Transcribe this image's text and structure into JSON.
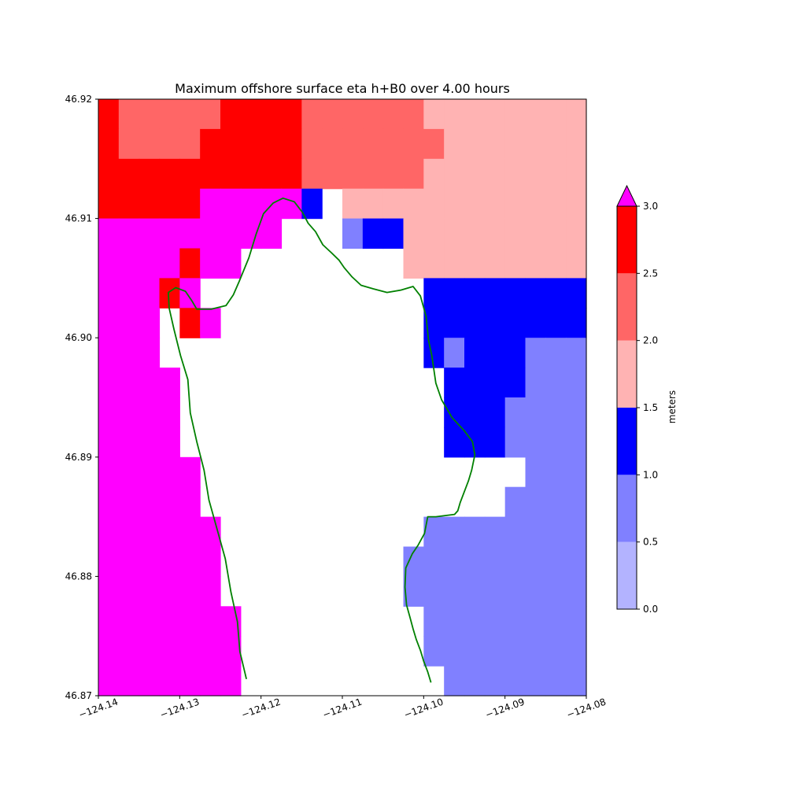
{
  "chart_data": {
    "type": "heatmap",
    "title": "Maximum offshore surface eta h+B0 over 4.00 hours",
    "xlabel": "",
    "ylabel": "",
    "xlim": [
      -124.14,
      -124.08
    ],
    "ylim": [
      46.87,
      46.92
    ],
    "x_ticks": [
      -124.14,
      -124.13,
      -124.12,
      -124.11,
      -124.1,
      -124.09,
      -124.08
    ],
    "x_tick_labels": [
      "−124.14",
      "−124.13",
      "−124.12",
      "−124.11",
      "−124.10",
      "−124.09",
      "−124.08"
    ],
    "y_ticks": [
      46.87,
      46.88,
      46.89,
      46.9,
      46.91,
      46.92
    ],
    "y_tick_labels": [
      "46.87",
      "46.88",
      "46.89",
      "46.90",
      "46.91",
      "46.92"
    ],
    "grid": false,
    "colorbar": {
      "label": "meters",
      "levels": [
        0.0,
        0.5,
        1.0,
        1.5,
        2.0,
        2.5,
        3.0
      ],
      "tick_labels": [
        "0.0",
        "0.5",
        "1.0",
        "1.5",
        "2.0",
        "2.5",
        "3.0"
      ],
      "colors": [
        "#b3b3ff",
        "#8080ff",
        "#0000ff",
        "#ffb3b3",
        "#ff6666",
        "#ff0000"
      ],
      "over_color": "#ff00ff",
      "extend": "max"
    },
    "grid_spec": {
      "x0": -124.14,
      "y_top": 46.92,
      "dx": 0.0025,
      "dy": 0.0025,
      "ncols": 24,
      "nrows": 20
    },
    "level_codes": {
      "R": "#ff0000",
      "S": "#ff6666",
      "P": "#ffb3b3",
      "B": "#0000ff",
      "L": "#8080ff",
      "M": "#ff00ff",
      ".": "none"
    },
    "cells": [
      "RSSSSSRRRRSSSSSSPPPPPPPP",
      "RSSSSRRRRRSSSSSSSPPPPPPP",
      "RRRRRRRRRRSSSSSSPPPPPPPP",
      "RRRRRMMMMMB.PPPPPPPPPPPP",
      "MMMMMMMMM...LBBPPPPPPPPP",
      "MMMMRMM........PPPPPPPPP",
      "MMMRM...........BBBBBBBB",
      "MMM.RM..........BBBBBBBB",
      "MMM.............BLBBBLLL",
      "MMMM.............BBBBLLL",
      "MMMM.............BBBLLLL",
      "MMMM.............BBBLLLL",
      "MMMMM................LLL",
      "MMMMM...............LLLL",
      "MMMMMM..........LLLLLLLL",
      "MMMMMM.........LLLLLLLLL",
      "MMMMMM.........LLLLLLLLL",
      "MMMMMMM.........LLLLLLLL",
      "MMMMMMM.........LLLLLLLL",
      "MMMMMMM..........LLLLLLL"
    ],
    "coastlines": [
      [
        [
          -124.1218,
          46.8714
        ],
        [
          -124.1226,
          46.8737
        ],
        [
          -124.1229,
          46.8762
        ],
        [
          -124.1237,
          46.8787
        ],
        [
          -124.1244,
          46.8815
        ],
        [
          -124.1253,
          46.8837
        ],
        [
          -124.1264,
          46.8864
        ],
        [
          -124.127,
          46.8889
        ],
        [
          -124.1279,
          46.8913
        ],
        [
          -124.1287,
          46.8937
        ],
        [
          -124.129,
          46.8965
        ],
        [
          -124.1299,
          46.8985
        ],
        [
          -124.1307,
          46.9007
        ],
        [
          -124.1313,
          46.9025
        ],
        [
          -124.1314,
          46.9038
        ],
        [
          -124.1305,
          46.9042
        ],
        [
          -124.1293,
          46.9039
        ],
        [
          -124.1285,
          46.9031
        ],
        [
          -124.1279,
          46.9024
        ],
        [
          -124.1261,
          46.9024
        ],
        [
          -124.1243,
          46.9027
        ],
        [
          -124.1234,
          46.9036
        ],
        [
          -124.1227,
          46.9047
        ],
        [
          -124.1215,
          46.9067
        ],
        [
          -124.1206,
          46.9087
        ],
        [
          -124.1197,
          46.9104
        ],
        [
          -124.1185,
          46.9113
        ],
        [
          -124.1173,
          46.9117
        ],
        [
          -124.1159,
          46.9114
        ],
        [
          -124.1149,
          46.9105
        ],
        [
          -124.1142,
          46.9096
        ],
        [
          -124.1133,
          46.9089
        ],
        [
          -124.1124,
          46.9078
        ],
        [
          -124.1113,
          46.9071
        ],
        [
          -124.1104,
          46.9065
        ],
        [
          -124.1098,
          46.9059
        ],
        [
          -124.1088,
          46.9051
        ],
        [
          -124.1077,
          46.9044
        ],
        [
          -124.1062,
          46.9041
        ],
        [
          -124.1045,
          46.9038
        ],
        [
          -124.1028,
          46.904
        ],
        [
          -124.1013,
          46.9043
        ],
        [
          -124.1004,
          46.9035
        ],
        [
          -124.0997,
          46.9018
        ],
        [
          -124.0994,
          46.8998
        ],
        [
          -124.099,
          46.8985
        ],
        [
          -124.0985,
          46.8962
        ],
        [
          -124.0978,
          46.8948
        ],
        [
          -124.0965,
          46.8933
        ],
        [
          -124.095,
          46.8922
        ],
        [
          -124.094,
          46.8913
        ],
        [
          -124.0937,
          46.8902
        ],
        [
          -124.0941,
          46.8889
        ],
        [
          -124.0945,
          46.888
        ],
        [
          -124.0955,
          46.8862
        ],
        [
          -124.0958,
          46.8855
        ],
        [
          -124.0962,
          46.8852
        ],
        [
          -124.0985,
          46.885
        ],
        [
          -124.0995,
          46.885
        ],
        [
          -124.0999,
          46.8836
        ],
        [
          -124.1007,
          46.8826
        ],
        [
          -124.1014,
          46.8819
        ],
        [
          -124.1022,
          46.8807
        ],
        [
          -124.1023,
          46.8791
        ],
        [
          -124.1021,
          46.8776
        ],
        [
          -124.1017,
          46.8766
        ],
        [
          -124.1013,
          46.8756
        ],
        [
          -124.1009,
          46.8747
        ],
        [
          -124.1004,
          46.8738
        ],
        [
          -124.1,
          46.8729
        ],
        [
          -124.0995,
          46.872
        ],
        [
          -124.0991,
          46.8711
        ]
      ]
    ]
  }
}
